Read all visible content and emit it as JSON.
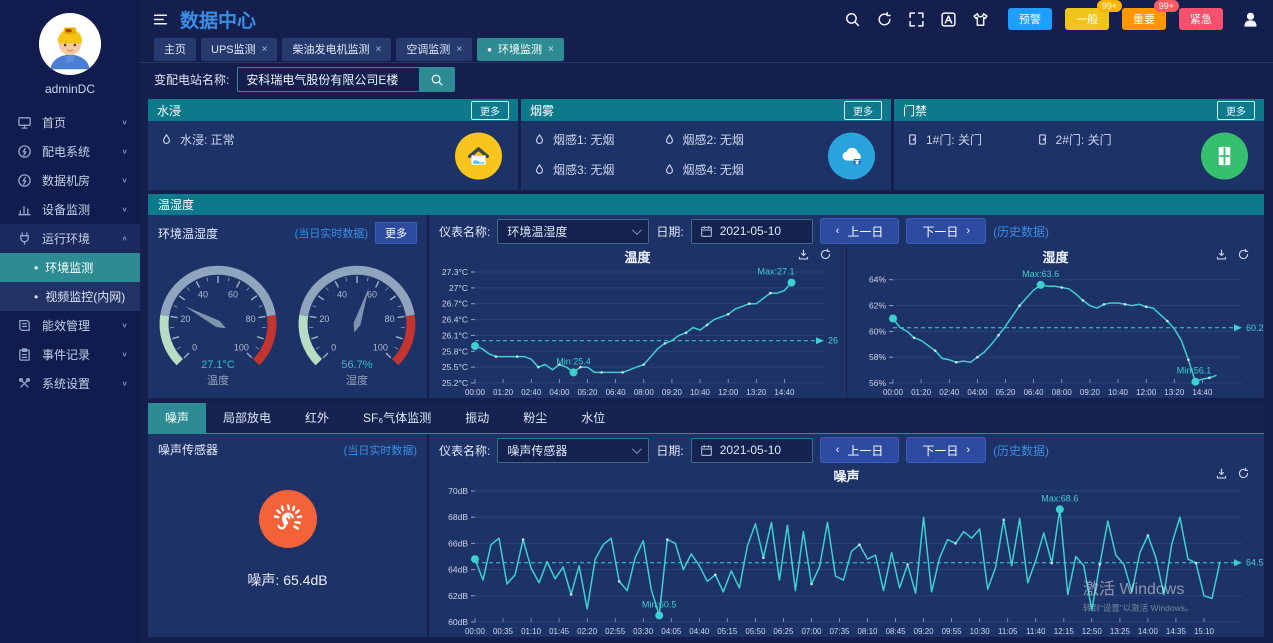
{
  "colors": {
    "accent_blue": "#3a8ee6",
    "teal_header": "#0d7a8c",
    "active_teal": "#2d8c93",
    "panel_bg": "#1d3266",
    "button_blue": "#2d4ba0",
    "line_color": "#3ed0d0"
  },
  "sidebar": {
    "username": "adminDC",
    "items": [
      {
        "label": "首页",
        "icon": "home-icon"
      },
      {
        "label": "配电系统",
        "icon": "power-system-icon"
      },
      {
        "label": "数据机房",
        "icon": "data-room-icon"
      },
      {
        "label": "设备监测",
        "icon": "device-monitor-icon"
      },
      {
        "label": "运行环境",
        "icon": "environment-icon",
        "expanded": true,
        "children": [
          {
            "label": "环境监测",
            "active": true
          },
          {
            "label": "视频监控(内网)",
            "active": false
          }
        ]
      },
      {
        "label": "能效管理",
        "icon": "energy-icon"
      },
      {
        "label": "事件记录",
        "icon": "event-log-icon"
      },
      {
        "label": "系统设置",
        "icon": "settings-icon"
      }
    ]
  },
  "header": {
    "title": "数据中心",
    "alarm_badges": [
      {
        "label": "预警",
        "color": "#1e9fff"
      },
      {
        "label": "一般",
        "color": "#f0c419",
        "count": "99+",
        "count_color": "#ffb400"
      },
      {
        "label": "重要",
        "color": "#ff9800",
        "count": "99+",
        "count_color": "#ff5a5f"
      },
      {
        "label": "紧急",
        "color": "#f4516c"
      }
    ]
  },
  "tabs": [
    {
      "label": "主页",
      "closable": false,
      "active": false
    },
    {
      "label": "UPS监测",
      "closable": true,
      "active": false
    },
    {
      "label": "柴油发电机监测",
      "closable": true,
      "active": false
    },
    {
      "label": "空调监测",
      "closable": true,
      "active": false
    },
    {
      "label": "环境监测",
      "closable": true,
      "active": true
    }
  ],
  "search": {
    "label": "变配电站名称:",
    "value": "安科瑞电气股份有限公司E楼"
  },
  "status_panels": [
    {
      "title": "水浸",
      "more": "更多",
      "icon": "flood-icon",
      "icon_bg": "#f7c51e",
      "cols": 1,
      "items": [
        {
          "text": "水浸: 正常"
        }
      ]
    },
    {
      "title": "烟雾",
      "more": "更多",
      "icon": "smoke-icon",
      "icon_bg": "#29a3dc",
      "cols": 2,
      "items": [
        {
          "text": "烟感1: 无烟"
        },
        {
          "text": "烟感2: 无烟"
        },
        {
          "text": "烟感3: 无烟"
        },
        {
          "text": "烟感4: 无烟"
        }
      ]
    },
    {
      "title": "门禁",
      "more": "更多",
      "icon": "door-grid-icon",
      "icon_bg": "#35c06f",
      "cols": 2,
      "items": [
        {
          "text": "1#门: 关门"
        },
        {
          "text": "2#门: 关门"
        }
      ]
    }
  ],
  "temp_humidity": {
    "section_title": "温湿度",
    "panel_title": "环境温湿度",
    "realtime_link": "(当日实时数据)",
    "more_button": "更多",
    "gauges": [
      {
        "label": "温度",
        "value": 27.1,
        "display": "27.1°C"
      },
      {
        "label": "湿度",
        "value": 56.7,
        "display": "56.7%"
      }
    ],
    "controls": {
      "meter_label": "仪表名称:",
      "meter_value": "环境温湿度",
      "date_label": "日期:",
      "date_value": "2021-05-10",
      "prev_button": "上一日",
      "next_button": "下一日",
      "history_link": "(历史数据)"
    }
  },
  "noise": {
    "subtabs": [
      {
        "label": "噪声",
        "active": true
      },
      {
        "label": "局部放电"
      },
      {
        "label": "红外"
      },
      {
        "label": "SF₆气体监测"
      },
      {
        "label": "振动"
      },
      {
        "label": "粉尘"
      },
      {
        "label": "水位"
      }
    ],
    "panel_title": "噪声传感器",
    "realtime_link": "(当日实时数据)",
    "reading": "噪声:  65.4dB",
    "controls": {
      "meter_label": "仪表名称:",
      "meter_value": "噪声传感器",
      "date_label": "日期:",
      "date_value": "2021-05-10",
      "prev_button": "上一日",
      "next_button": "下一日",
      "history_link": "(历史数据)"
    }
  },
  "watermark": {
    "line1": "激活 Windows",
    "line2": "转到“设置”以激活 Windows。"
  },
  "chart_data": [
    {
      "id": "temperature",
      "type": "line",
      "title": "温度",
      "xlabel": "time",
      "ylabel": "°C",
      "ylim": [
        25.2,
        27.3
      ],
      "xlim": [
        0,
        930
      ],
      "y_ticks": [
        {
          "v": 25.2,
          "label": "25.2°C"
        },
        {
          "v": 25.5,
          "label": "25.5°C"
        },
        {
          "v": 25.8,
          "label": "25.8°C"
        },
        {
          "v": 26.1,
          "label": "26.1°C"
        },
        {
          "v": 26.4,
          "label": "26.4°C"
        },
        {
          "v": 26.7,
          "label": "26.7°C"
        },
        {
          "v": 27.0,
          "label": "27°C"
        },
        {
          "v": 27.3,
          "label": "27.3°C"
        }
      ],
      "x_tick_minutes": [
        0,
        80,
        160,
        240,
        320,
        400,
        480,
        560,
        640,
        720,
        800,
        880
      ],
      "x_tick_labels": [
        "00:00",
        "01:20",
        "02:40",
        "04:00",
        "05:20",
        "06:40",
        "08:00",
        "09:20",
        "10:40",
        "12:00",
        "13:20",
        "14:40"
      ],
      "x": [
        0,
        20,
        40,
        60,
        80,
        100,
        120,
        140,
        160,
        180,
        200,
        220,
        240,
        260,
        280,
        300,
        320,
        340,
        360,
        380,
        400,
        420,
        440,
        460,
        480,
        500,
        520,
        540,
        560,
        580,
        600,
        620,
        640,
        660,
        680,
        700,
        720,
        740,
        760,
        780,
        800,
        820,
        840,
        860,
        880,
        900
      ],
      "values": [
        25.9,
        25.85,
        25.75,
        25.7,
        25.7,
        25.7,
        25.7,
        25.7,
        25.65,
        25.5,
        25.55,
        25.45,
        25.55,
        25.5,
        25.4,
        25.5,
        25.5,
        25.4,
        25.4,
        25.4,
        25.4,
        25.4,
        25.45,
        25.5,
        25.55,
        25.7,
        25.85,
        25.95,
        26.0,
        26.1,
        26.15,
        26.25,
        26.2,
        26.3,
        26.4,
        26.45,
        26.5,
        26.6,
        26.65,
        26.7,
        26.7,
        26.8,
        26.9,
        26.9,
        26.95,
        27.1
      ],
      "avg": {
        "value": 26,
        "label": "26"
      },
      "max_label": "Max:27.1",
      "min_label": "Min:25.4",
      "line_color": "#3ed0d0",
      "marker_step": 3
    },
    {
      "id": "humidity",
      "type": "line",
      "title": "湿度",
      "xlabel": "time",
      "ylabel": "%",
      "ylim": [
        56,
        64.6
      ],
      "xlim": [
        0,
        930
      ],
      "y_ticks": [
        {
          "v": 56,
          "label": "56%"
        },
        {
          "v": 58,
          "label": "58%"
        },
        {
          "v": 60,
          "label": "60%"
        },
        {
          "v": 62,
          "label": "62%"
        },
        {
          "v": 64,
          "label": "64%"
        }
      ],
      "x_tick_minutes": [
        0,
        80,
        160,
        240,
        320,
        400,
        480,
        560,
        640,
        720,
        800,
        880
      ],
      "x_tick_labels": [
        "00:00",
        "01:20",
        "02:40",
        "04:00",
        "05:20",
        "06:40",
        "08:00",
        "09:20",
        "10:40",
        "12:00",
        "13:20",
        "14:40"
      ],
      "x": [
        0,
        20,
        40,
        60,
        80,
        100,
        120,
        140,
        160,
        180,
        200,
        220,
        240,
        260,
        280,
        300,
        320,
        340,
        360,
        380,
        400,
        420,
        440,
        460,
        480,
        500,
        520,
        540,
        560,
        580,
        600,
        620,
        640,
        660,
        680,
        700,
        720,
        740,
        760,
        780,
        800,
        820,
        840,
        860,
        880,
        900,
        920
      ],
      "values": [
        61.0,
        60.3,
        60.0,
        59.5,
        59.3,
        58.9,
        58.5,
        57.9,
        57.8,
        57.6,
        57.7,
        57.6,
        58.0,
        58.4,
        59.0,
        59.7,
        60.4,
        61.2,
        62.0,
        62.6,
        63.2,
        63.6,
        63.5,
        63.5,
        63.4,
        63.3,
        62.9,
        62.4,
        62.0,
        61.8,
        62.1,
        62.2,
        62.2,
        62.1,
        62.0,
        62.1,
        61.9,
        61.8,
        61.3,
        60.8,
        60.2,
        59.3,
        57.8,
        56.1,
        56.3,
        56.4,
        56.6
      ],
      "avg": {
        "value": 60.28,
        "label": "60.28"
      },
      "max_label": "Max:63.6",
      "min_label": "Min:56.1",
      "line_color": "#3ed0d0",
      "marker_step": 3
    },
    {
      "id": "noise",
      "type": "line",
      "title": "噪声",
      "xlabel": "time",
      "ylabel": "dB",
      "ylim": [
        60,
        70
      ],
      "xlim": [
        0,
        930
      ],
      "y_ticks": [
        {
          "v": 60,
          "label": "60dB"
        },
        {
          "v": 62,
          "label": "62dB"
        },
        {
          "v": 64,
          "label": "64dB"
        },
        {
          "v": 66,
          "label": "66dB"
        },
        {
          "v": 68,
          "label": "68dB"
        },
        {
          "v": 70,
          "label": "70dB"
        }
      ],
      "x_tick_minutes": [
        0,
        35,
        70,
        105,
        140,
        175,
        210,
        245,
        280,
        315,
        350,
        385,
        420,
        455,
        490,
        525,
        560,
        595,
        630,
        665,
        700,
        735,
        770,
        805,
        840,
        875,
        910
      ],
      "x_tick_labels": [
        "00:00",
        "00:35",
        "01:10",
        "01:45",
        "02:20",
        "02:55",
        "03:30",
        "04:05",
        "04:40",
        "05:15",
        "05:50",
        "06:25",
        "07:00",
        "07:35",
        "08:10",
        "08:45",
        "09:20",
        "09:55",
        "10:30",
        "11:05",
        "11:40",
        "12:15",
        "12:50",
        "13:25",
        "14:00",
        "14:35",
        "15:10"
      ],
      "x": [
        0,
        10,
        20,
        30,
        40,
        50,
        60,
        70,
        80,
        90,
        100,
        110,
        120,
        130,
        140,
        150,
        160,
        170,
        180,
        190,
        200,
        210,
        220,
        230,
        240,
        250,
        260,
        270,
        280,
        290,
        300,
        310,
        320,
        330,
        340,
        350,
        360,
        370,
        380,
        390,
        400,
        410,
        420,
        430,
        440,
        450,
        460,
        470,
        480,
        490,
        500,
        510,
        520,
        530,
        540,
        550,
        560,
        570,
        580,
        590,
        600,
        610,
        620,
        630,
        640,
        650,
        660,
        670,
        680,
        690,
        700,
        710,
        720,
        730,
        740,
        750,
        760,
        770,
        780,
        790,
        800,
        810,
        820,
        830,
        840,
        850,
        860,
        870,
        880,
        890,
        900,
        910,
        920,
        930
      ],
      "values": [
        64.8,
        63.2,
        65.9,
        66.4,
        62.9,
        63.6,
        66.3,
        64.1,
        63.0,
        64.6,
        63.3,
        64.2,
        62.1,
        64.3,
        61.0,
        64.8,
        65.9,
        66.4,
        63.1,
        62.4,
        64.9,
        66.2,
        62.5,
        60.5,
        66.3,
        66.0,
        64.0,
        65.2,
        64.3,
        63.1,
        63.6,
        62.3,
        63.9,
        62.6,
        65.8,
        67.5,
        64.9,
        67.6,
        63.2,
        67.4,
        62.4,
        66.9,
        62.9,
        64.2,
        67.6,
        63.5,
        63.2,
        65.4,
        65.9,
        64.8,
        65.1,
        62.4,
        65.3,
        62.6,
        64.4,
        62.2,
        68.0,
        62.3,
        64.9,
        66.3,
        66.0,
        66.9,
        66.4,
        67.1,
        62.5,
        64.2,
        67.8,
        64.3,
        67.9,
        63.0,
        64.7,
        66.8,
        64.5,
        68.6,
        62.1,
        65.0,
        64.3,
        60.9,
        64.4,
        67.7,
        65.1,
        64.4,
        62.3,
        65.3,
        66.6,
        64.9,
        62.1,
        66.0,
        68.0,
        64.8,
        64.5,
        62.0,
        61.8,
        64.6
      ],
      "avg": {
        "value": 64.53,
        "label": "64.53"
      },
      "max_label": "Max:68.6",
      "min_label": "Min:60.5",
      "line_color": "#3ed0d0",
      "marker_step": 6
    }
  ]
}
